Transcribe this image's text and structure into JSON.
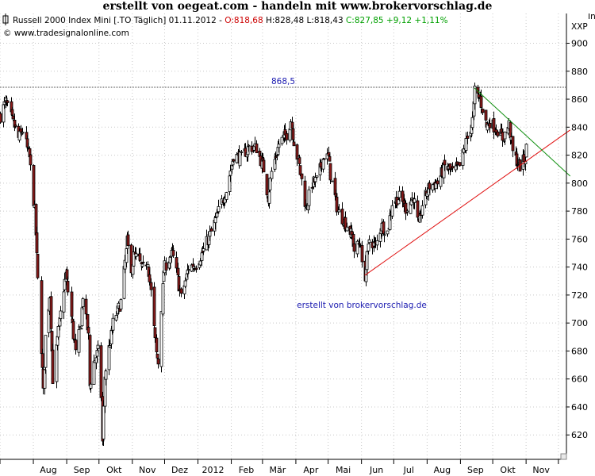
{
  "banner": "erstellt von oegeat.com  - handeln mit  www.brokervorschlag.de",
  "header": {
    "instrument": "Russell 2000 Index Mini [.TO  Täglich] 01.11.2012",
    "open_label": "O:818,68",
    "hl_label": "H:828,48 L:818,43",
    "close_label": "C:827,85 +9,12 +1,11%",
    "copyright": "© www.tradesignalonline.com",
    "axis_unit": "XXP",
    "corner_mark": "In"
  },
  "colors": {
    "background": "#ffffff",
    "up_candle": "#ffffff",
    "down_candle": "#8b1a1a",
    "open_text": "#cc0000",
    "close_text": "#00a000",
    "support_line": "#e01010",
    "resistance_line": "#109010",
    "hline": "#444444",
    "annotation": "#1a1ab0"
  },
  "chart_data": {
    "type": "candlestick",
    "y_ticks": [
      620,
      640,
      660,
      680,
      700,
      720,
      740,
      760,
      780,
      800,
      820,
      840,
      860,
      880,
      900
    ],
    "ylim": [
      608,
      910
    ],
    "x_ticks": [
      "Aug",
      "Sep",
      "Okt",
      "Nov",
      "Dez",
      "2012",
      "Feb",
      "Mär",
      "Apr",
      "Mai",
      "Jun",
      "Jul",
      "Aug",
      "Sep",
      "Okt",
      "Nov"
    ],
    "grid": true,
    "hline": {
      "value": 868.5,
      "label": "868,5"
    },
    "annotation": "erstellt von brokervorschlag.de",
    "support_trendline": {
      "from": {
        "date": "2012-06-04",
        "value": 734
      },
      "to": {
        "date": "2012-12-12",
        "value": 838
      }
    },
    "resistance_trendline": {
      "from": {
        "date": "2012-09-14",
        "value": 868
      },
      "to": {
        "date": "2012-12-12",
        "value": 805
      }
    },
    "last_bar": {
      "date": "2012-11-01",
      "open": 818.68,
      "high": 828.48,
      "low": 818.43,
      "close": 827.85
    },
    "close_path": [
      [
        "2011-07-01",
        848
      ],
      [
        "2011-07-06",
        858
      ],
      [
        "2011-07-12",
        845
      ],
      [
        "2011-07-18",
        832
      ],
      [
        "2011-07-22",
        838
      ],
      [
        "2011-07-28",
        818
      ],
      [
        "2011-08-02",
        780
      ],
      [
        "2011-08-05",
        730
      ],
      [
        "2011-08-08",
        682
      ],
      [
        "2011-08-10",
        650
      ],
      [
        "2011-08-12",
        690
      ],
      [
        "2011-08-16",
        720
      ],
      [
        "2011-08-19",
        660
      ],
      [
        "2011-08-23",
        688
      ],
      [
        "2011-08-29",
        725
      ],
      [
        "2011-08-31",
        735
      ],
      [
        "2011-09-06",
        698
      ],
      [
        "2011-09-09",
        678
      ],
      [
        "2011-09-14",
        700
      ],
      [
        "2011-09-16",
        720
      ],
      [
        "2011-09-21",
        690
      ],
      [
        "2011-09-22",
        655
      ],
      [
        "2011-09-26",
        672
      ],
      [
        "2011-09-30",
        680
      ],
      [
        "2011-10-03",
        648
      ],
      [
        "2011-10-04",
        615
      ],
      [
        "2011-10-06",
        662
      ],
      [
        "2011-10-10",
        682
      ],
      [
        "2011-10-14",
        700
      ],
      [
        "2011-10-21",
        715
      ],
      [
        "2011-10-27",
        758
      ],
      [
        "2011-10-31",
        740
      ],
      [
        "2011-11-02",
        748
      ],
      [
        "2011-11-07",
        745
      ],
      [
        "2011-11-10",
        738
      ],
      [
        "2011-11-15",
        745
      ],
      [
        "2011-11-18",
        722
      ],
      [
        "2011-11-23",
        678
      ],
      [
        "2011-11-25",
        672
      ],
      [
        "2011-11-30",
        738
      ],
      [
        "2011-12-02",
        742
      ],
      [
        "2011-12-08",
        750
      ],
      [
        "2011-12-12",
        736
      ],
      [
        "2011-12-16",
        718
      ],
      [
        "2011-12-20",
        730
      ],
      [
        "2011-12-23",
        740
      ],
      [
        "2011-12-30",
        742
      ],
      [
        "2012-01-06",
        752
      ],
      [
        "2012-01-13",
        765
      ],
      [
        "2012-01-20",
        780
      ],
      [
        "2012-01-27",
        795
      ],
      [
        "2012-02-03",
        820
      ],
      [
        "2012-02-10",
        818
      ],
      [
        "2012-02-17",
        826
      ],
      [
        "2012-02-24",
        825
      ],
      [
        "2012-03-02",
        810
      ],
      [
        "2012-03-06",
        790
      ],
      [
        "2012-03-09",
        808
      ],
      [
        "2012-03-16",
        828
      ],
      [
        "2012-03-23",
        835
      ],
      [
        "2012-03-27",
        845
      ],
      [
        "2012-03-30",
        830
      ],
      [
        "2012-04-04",
        812
      ],
      [
        "2012-04-10",
        782
      ],
      [
        "2012-04-16",
        800
      ],
      [
        "2012-04-20",
        802
      ],
      [
        "2012-04-27",
        820
      ],
      [
        "2012-05-01",
        818
      ],
      [
        "2012-05-04",
        800
      ],
      [
        "2012-05-10",
        780
      ],
      [
        "2012-05-18",
        770
      ],
      [
        "2012-05-23",
        762
      ],
      [
        "2012-05-25",
        752
      ],
      [
        "2012-05-31",
        758
      ],
      [
        "2012-06-01",
        740
      ],
      [
        "2012-06-04",
        734
      ],
      [
        "2012-06-08",
        760
      ],
      [
        "2012-06-14",
        755
      ],
      [
        "2012-06-19",
        770
      ],
      [
        "2012-06-25",
        765
      ],
      [
        "2012-06-29",
        786
      ],
      [
        "2012-07-06",
        790
      ],
      [
        "2012-07-12",
        782
      ],
      [
        "2012-07-19",
        790
      ],
      [
        "2012-07-24",
        768
      ],
      [
        "2012-07-27",
        785
      ],
      [
        "2012-08-03",
        798
      ],
      [
        "2012-08-10",
        800
      ],
      [
        "2012-08-17",
        812
      ],
      [
        "2012-08-24",
        808
      ],
      [
        "2012-08-31",
        812
      ],
      [
        "2012-09-07",
        832
      ],
      [
        "2012-09-12",
        845
      ],
      [
        "2012-09-14",
        866
      ],
      [
        "2012-09-19",
        860
      ],
      [
        "2012-09-25",
        840
      ],
      [
        "2012-09-28",
        844
      ],
      [
        "2012-10-05",
        838
      ],
      [
        "2012-10-10",
        832
      ],
      [
        "2012-10-16",
        842
      ],
      [
        "2012-10-19",
        822
      ],
      [
        "2012-10-23",
        816
      ],
      [
        "2012-10-26",
        812
      ],
      [
        "2012-10-31",
        818
      ],
      [
        "2012-11-01",
        827.85
      ]
    ]
  }
}
